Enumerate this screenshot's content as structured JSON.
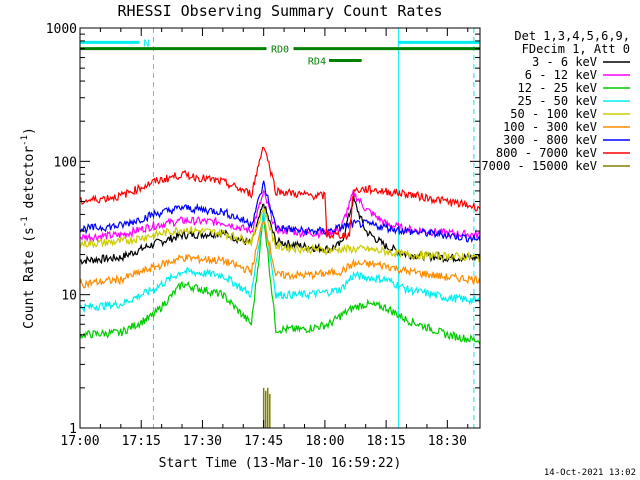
{
  "chart_data": {
    "type": "line",
    "title": "RHESSI Observing Summary Count Rates",
    "xlabel": "Start Time (13-Mar-10 16:59:22)",
    "ylabel": "Count Rate (s",
    "ylabel_sup": "-1",
    "ylabel_tail": " detector",
    "ylabel_sup2": "-1",
    "ylabel_end": ")",
    "y_scale": "log",
    "ylim": [
      1,
      1000
    ],
    "xlim_minutes": [
      0,
      98
    ],
    "x_ticks": [
      {
        "label": "17:00",
        "minute": 0
      },
      {
        "label": "17:15",
        "minute": 15
      },
      {
        "label": "17:30",
        "minute": 30
      },
      {
        "label": "17:45",
        "minute": 45
      },
      {
        "label": "18:00",
        "minute": 60
      },
      {
        "label": "18:15",
        "minute": 75
      },
      {
        "label": "18:30",
        "minute": 90
      }
    ],
    "y_ticks": [
      {
        "label": "1",
        "value": 1
      },
      {
        "label": "10",
        "value": 10
      },
      {
        "label": "100",
        "value": 100
      },
      {
        "label": "1000",
        "value": 1000
      }
    ],
    "legend_header": [
      "Det 1,3,4,5,6,9,",
      "FDecim 1, Att 0"
    ],
    "legend_placement": "right",
    "grid": false,
    "series": [
      {
        "name": "3 - 6 keV",
        "color": "#000000",
        "x": [
          0,
          10,
          18,
          25,
          35,
          42,
          45,
          48,
          55,
          61,
          64,
          67,
          70,
          75,
          80,
          90,
          98
        ],
        "values": [
          18,
          19,
          24,
          28,
          29,
          24,
          48,
          25,
          23,
          22,
          24,
          52,
          30,
          23,
          20,
          19,
          19
        ]
      },
      {
        "name": "6 - 12 keV",
        "color": "#ff00ff",
        "x": [
          0,
          10,
          18,
          25,
          35,
          42,
          45,
          48,
          55,
          61,
          64,
          67,
          70,
          75,
          80,
          90,
          98
        ],
        "values": [
          27,
          28,
          33,
          36,
          35,
          30,
          58,
          31,
          29,
          29,
          32,
          58,
          44,
          34,
          31,
          29,
          28
        ]
      },
      {
        "name": "12 - 25 keV",
        "color": "#00cc00",
        "x": [
          0,
          10,
          18,
          25,
          35,
          42,
          45,
          48,
          55,
          61,
          64,
          67,
          70,
          75,
          80,
          90,
          98
        ],
        "values": [
          5,
          5.2,
          7,
          12,
          10,
          6,
          40,
          5.5,
          5.5,
          6,
          7,
          8,
          8.5,
          8,
          6.5,
          5,
          4.5
        ]
      },
      {
        "name": "25 - 50 keV",
        "color": "#00eeee",
        "x": [
          0,
          10,
          18,
          25,
          35,
          42,
          45,
          48,
          55,
          61,
          64,
          67,
          70,
          75,
          80,
          90,
          98
        ],
        "values": [
          8,
          8.5,
          11,
          15,
          14,
          10,
          42,
          10,
          10,
          10.5,
          11,
          14,
          13.5,
          13,
          11,
          9.5,
          9
        ]
      },
      {
        "name": "50 - 100 keV",
        "color": "#cccc00",
        "x": [
          0,
          10,
          18,
          25,
          35,
          42,
          45,
          48,
          55,
          61,
          64,
          67,
          70,
          75,
          80,
          90,
          98
        ],
        "values": [
          24,
          25,
          28,
          31,
          29,
          25,
          45,
          23,
          22,
          21.5,
          22,
          22,
          22,
          21,
          20,
          19.5,
          19
        ]
      },
      {
        "name": "100 - 300 keV",
        "color": "#ff8c00",
        "x": [
          0,
          10,
          18,
          25,
          35,
          42,
          45,
          48,
          55,
          61,
          64,
          67,
          70,
          75,
          80,
          90,
          98
        ],
        "values": [
          12,
          13,
          16,
          19,
          18,
          15,
          38,
          14,
          14,
          14.5,
          15,
          17,
          17,
          16.5,
          15,
          13.5,
          13
        ]
      },
      {
        "name": "300 - 800 keV",
        "color": "#0000ff",
        "x": [
          0,
          10,
          18,
          25,
          35,
          42,
          45,
          48,
          55,
          61,
          64,
          67,
          70,
          75,
          80,
          90,
          98
        ],
        "values": [
          31,
          33,
          40,
          45,
          42,
          34,
          68,
          32,
          30,
          30,
          32,
          34,
          34,
          32,
          30,
          28,
          26
        ]
      },
      {
        "name": "800 - 7000 keV",
        "color": "#ff0000",
        "x": [
          0,
          10,
          18,
          25,
          35,
          42,
          45,
          48,
          55,
          60,
          60.5,
          66,
          67,
          70,
          80,
          90,
          98
        ],
        "values": [
          50,
          55,
          70,
          80,
          70,
          57,
          135,
          60,
          56,
          55,
          28,
          28,
          60,
          62,
          57,
          50,
          45
        ]
      },
      {
        "name": "7000 - 15000 keV",
        "color": "#808000",
        "bars_x": [
          45,
          45.5,
          46,
          46.5
        ],
        "bars_values": [
          2,
          1.9,
          2,
          1.8
        ]
      }
    ],
    "annotations": [
      {
        "label": "N",
        "color": "#00eeee",
        "x_start": 0,
        "x_end": 18,
        "level": 780
      },
      {
        "label": "",
        "color": "#00eeee",
        "x_start": 78,
        "x_end": 98,
        "level": 780
      },
      {
        "label": "RD0",
        "color": "#008000",
        "x_start": 0,
        "x_end": 98,
        "level": 700
      },
      {
        "label": "RD4",
        "color": "#008000",
        "x_start": 61,
        "x_end": 69,
        "level": 570
      }
    ],
    "vertical_markers": [
      {
        "minute": 0,
        "style": "solid",
        "color": "#00eeee"
      },
      {
        "minute": 18,
        "style": "dashed",
        "color": "#00eeee"
      },
      {
        "minute": 78,
        "style": "solid",
        "color": "#00eeee"
      },
      {
        "minute": 96.5,
        "style": "dashed",
        "color": "#00eeee"
      }
    ],
    "footer": "14-Oct-2021 13:02"
  }
}
